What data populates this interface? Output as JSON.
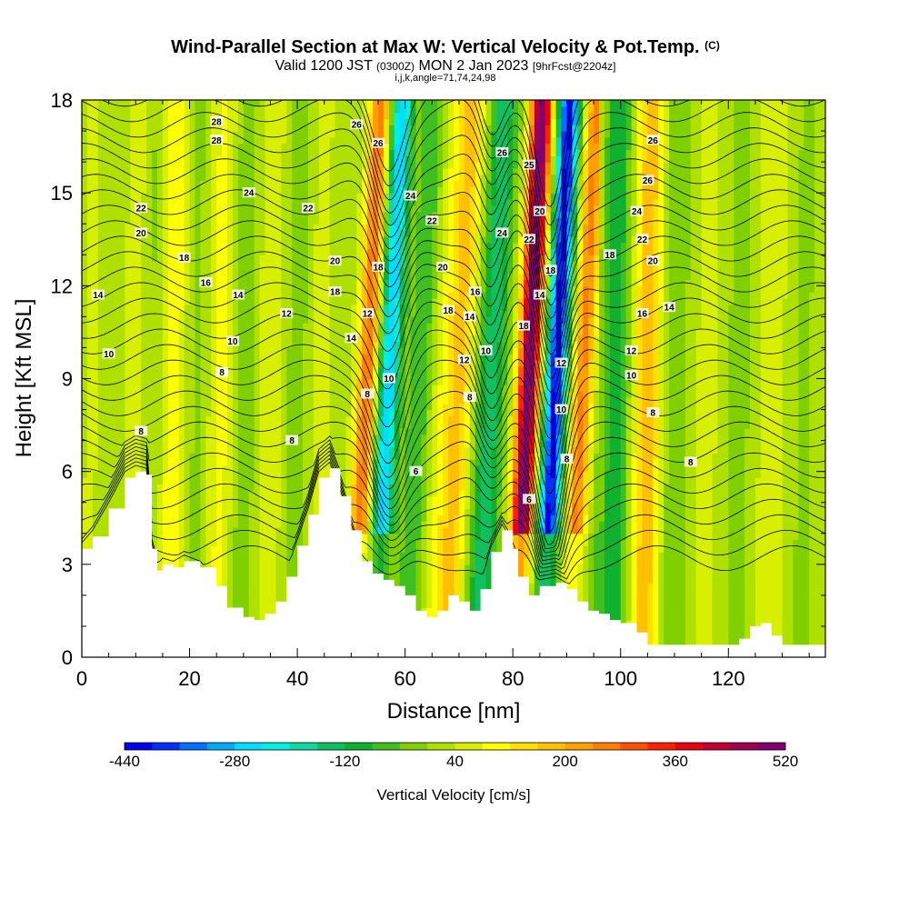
{
  "header": {
    "title_main": "Wind-Parallel Section at Max W: Vertical Velocity & Pot.Temp.",
    "title_mark": "(C)",
    "valid_prefix": "Valid 1200 JST",
    "valid_z": "(0300Z)",
    "valid_date": "MON 2 Jan 2023",
    "valid_fcst": "[9hrFcst@2204z]",
    "indices": "i,j,k,angle=71,74,24,98"
  },
  "chart_data": {
    "type": "heatmap",
    "xlabel": "Distance [nm]",
    "ylabel": "Height [Kft MSL]",
    "xlim": [
      0,
      138
    ],
    "ylim": [
      0,
      18
    ],
    "x_ticks": [
      "0",
      "20",
      "40",
      "60",
      "80",
      "100",
      "120"
    ],
    "y_ticks": [
      "0",
      "3",
      "6",
      "9",
      "12",
      "15",
      "18"
    ],
    "colorbar": {
      "title": "Vertical Velocity [cm/s]",
      "range": [
        -440,
        520
      ],
      "step": 40,
      "tick_labels": [
        "-440",
        "-280",
        "-120",
        "40",
        "200",
        "360",
        "520"
      ],
      "colors": [
        "#0000ee",
        "#0030ff",
        "#0070ff",
        "#00a8ff",
        "#00ddff",
        "#00f0e0",
        "#10d8a0",
        "#10c060",
        "#10b030",
        "#40c020",
        "#80d000",
        "#b0e000",
        "#d8f000",
        "#ffff00",
        "#ffe000",
        "#ffc000",
        "#ffa000",
        "#ff8000",
        "#ff5000",
        "#ff2000",
        "#e80010",
        "#c00030",
        "#a00050",
        "#800070"
      ]
    },
    "velocity_extremes": [
      {
        "distance_nm": 53,
        "kind": "updraft",
        "max_cm_s": 250
      },
      {
        "distance_nm": 57,
        "kind": "downdraft",
        "min_cm_s": -300
      },
      {
        "distance_nm": 70,
        "kind": "updraft",
        "max_cm_s": 180
      },
      {
        "distance_nm": 76,
        "kind": "downdraft",
        "min_cm_s": -200
      },
      {
        "distance_nm": 83,
        "kind": "updraft",
        "max_cm_s": 500
      },
      {
        "distance_nm": 88,
        "kind": "downdraft",
        "min_cm_s": -440
      },
      {
        "distance_nm": 93,
        "kind": "updraft",
        "max_cm_s": 230
      }
    ],
    "terrain": {
      "x": [
        0,
        2,
        5,
        8,
        10,
        12,
        13,
        14,
        15,
        17,
        19,
        22,
        25,
        27,
        30,
        32,
        34,
        36,
        38,
        40,
        42,
        44,
        46,
        48,
        50,
        52,
        54,
        56,
        58,
        60,
        62,
        64,
        66,
        68,
        70,
        72,
        74,
        76,
        78,
        80,
        81,
        83,
        85,
        88,
        90,
        92,
        94,
        96,
        98,
        100,
        103,
        105,
        108,
        112,
        116,
        120,
        122,
        124,
        126,
        128,
        130,
        132,
        134,
        136,
        138
      ],
      "height_kft": [
        3.5,
        3.9,
        4.8,
        5.8,
        6.0,
        5.9,
        3.5,
        2.8,
        3.0,
        2.9,
        3.1,
        2.9,
        2.3,
        1.6,
        1.3,
        1.2,
        1.4,
        1.8,
        2.6,
        3.6,
        4.6,
        5.8,
        6.1,
        5.2,
        4.1,
        3.1,
        2.7,
        2.5,
        2.3,
        2.0,
        1.5,
        1.3,
        1.5,
        2.0,
        1.8,
        1.5,
        2.2,
        3.4,
        4.1,
        3.5,
        2.6,
        2.0,
        2.3,
        2.4,
        2.2,
        1.8,
        1.5,
        1.4,
        1.2,
        1.1,
        0.8,
        0.4,
        0.4,
        0.4,
        0.4,
        0.4,
        0.6,
        1.0,
        1.1,
        0.7,
        0.4,
        0.4,
        0.4,
        0.4,
        0.4
      ]
    },
    "contour_label_values": [
      "6",
      "8",
      "10",
      "12",
      "14",
      "16",
      "18",
      "20",
      "22",
      "24",
      "26",
      "28"
    ],
    "contour_labels": [
      {
        "text": "28",
        "x": 25,
        "y": 17.3
      },
      {
        "text": "28",
        "x": 25,
        "y": 16.7
      },
      {
        "text": "24",
        "x": 31,
        "y": 15.0
      },
      {
        "text": "22",
        "x": 11,
        "y": 14.5
      },
      {
        "text": "20",
        "x": 11,
        "y": 13.7
      },
      {
        "text": "18",
        "x": 19,
        "y": 12.9
      },
      {
        "text": "16",
        "x": 23,
        "y": 12.1
      },
      {
        "text": "14",
        "x": 3,
        "y": 11.7
      },
      {
        "text": "14",
        "x": 29,
        "y": 11.7
      },
      {
        "text": "12",
        "x": 38,
        "y": 11.1
      },
      {
        "text": "10",
        "x": 5,
        "y": 9.8
      },
      {
        "text": "10",
        "x": 28,
        "y": 10.2
      },
      {
        "text": "8",
        "x": 26,
        "y": 9.2
      },
      {
        "text": "8",
        "x": 11,
        "y": 7.3
      },
      {
        "text": "8",
        "x": 39,
        "y": 7.0
      },
      {
        "text": "22",
        "x": 42,
        "y": 14.5
      },
      {
        "text": "20",
        "x": 47,
        "y": 12.8
      },
      {
        "text": "18",
        "x": 47,
        "y": 11.8
      },
      {
        "text": "14",
        "x": 50,
        "y": 10.3
      },
      {
        "text": "12",
        "x": 53,
        "y": 11.1
      },
      {
        "text": "26",
        "x": 51,
        "y": 17.2
      },
      {
        "text": "26",
        "x": 55,
        "y": 16.6
      },
      {
        "text": "24",
        "x": 61,
        "y": 14.9
      },
      {
        "text": "22",
        "x": 65,
        "y": 14.1
      },
      {
        "text": "20",
        "x": 67,
        "y": 12.6
      },
      {
        "text": "18",
        "x": 55,
        "y": 12.6
      },
      {
        "text": "18",
        "x": 68,
        "y": 11.2
      },
      {
        "text": "10",
        "x": 57,
        "y": 9.0
      },
      {
        "text": "8",
        "x": 53,
        "y": 8.5
      },
      {
        "text": "6",
        "x": 62,
        "y": 6.0
      },
      {
        "text": "16",
        "x": 73,
        "y": 11.8
      },
      {
        "text": "14",
        "x": 72,
        "y": 11.0
      },
      {
        "text": "12",
        "x": 71,
        "y": 9.6
      },
      {
        "text": "10",
        "x": 75,
        "y": 9.9
      },
      {
        "text": "8",
        "x": 72,
        "y": 8.4
      },
      {
        "text": "26",
        "x": 78,
        "y": 16.3
      },
      {
        "text": "24",
        "x": 78,
        "y": 13.7
      },
      {
        "text": "25",
        "x": 83,
        "y": 15.9
      },
      {
        "text": "20",
        "x": 85,
        "y": 14.4
      },
      {
        "text": "22",
        "x": 83,
        "y": 13.5
      },
      {
        "text": "18",
        "x": 87,
        "y": 12.5
      },
      {
        "text": "14",
        "x": 85,
        "y": 11.7
      },
      {
        "text": "18",
        "x": 82,
        "y": 10.7
      },
      {
        "text": "12",
        "x": 89,
        "y": 9.5
      },
      {
        "text": "10",
        "x": 89,
        "y": 8.0
      },
      {
        "text": "8",
        "x": 90,
        "y": 6.4
      },
      {
        "text": "6",
        "x": 83,
        "y": 5.1
      },
      {
        "text": "26",
        "x": 106,
        "y": 16.7
      },
      {
        "text": "26",
        "x": 105,
        "y": 15.4
      },
      {
        "text": "24",
        "x": 103,
        "y": 14.4
      },
      {
        "text": "22",
        "x": 104,
        "y": 13.5
      },
      {
        "text": "20",
        "x": 106,
        "y": 12.8
      },
      {
        "text": "18",
        "x": 98,
        "y": 13.0
      },
      {
        "text": "16",
        "x": 104,
        "y": 11.1
      },
      {
        "text": "14",
        "x": 109,
        "y": 11.3
      },
      {
        "text": "12",
        "x": 102,
        "y": 9.9
      },
      {
        "text": "10",
        "x": 102,
        "y": 9.1
      },
      {
        "text": "8",
        "x": 106,
        "y": 7.9
      },
      {
        "text": "8",
        "x": 113,
        "y": 6.3
      }
    ]
  }
}
